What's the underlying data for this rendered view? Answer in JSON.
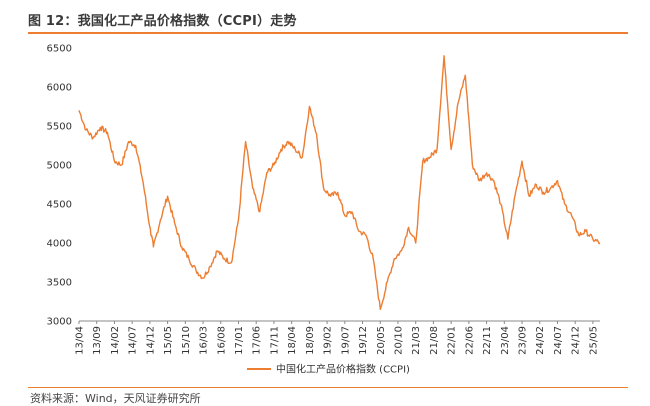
{
  "figure": {
    "title": "图 12：我国化工产品价格指数（CCPI）走势",
    "source": "资料来源：Wind，天风证券研究所"
  },
  "colors": {
    "accent": "#ED7D31",
    "axis": "#888888"
  },
  "chart_data": {
    "type": "line",
    "title": "",
    "xlabel": "",
    "ylabel": "",
    "ylim": [
      3000,
      6500
    ],
    "yticks": [
      3000,
      3500,
      4000,
      4500,
      5000,
      5500,
      6000,
      6500
    ],
    "xticks": [
      "13/04",
      "13/09",
      "14/02",
      "14/07",
      "14/12",
      "15/05",
      "15/10",
      "16/03",
      "16/08",
      "17/01",
      "17/06",
      "17/11",
      "18/04",
      "18/09",
      "19/02",
      "19/07",
      "19/12",
      "20/05",
      "20/10",
      "21/03",
      "21/08",
      "22/01",
      "22/06",
      "22/11",
      "23/04",
      "23/09",
      "24/02",
      "24/07",
      "24/12",
      "25/05"
    ],
    "legend": "bottom-center",
    "grid": false,
    "series": [
      {
        "name": "中国化工产品价格指数 (CCPI)",
        "color": "#ED7D31",
        "x": [
          "13/04",
          "13/06",
          "13/08",
          "13/10",
          "13/12",
          "14/02",
          "14/04",
          "14/06",
          "14/08",
          "14/10",
          "14/12",
          "15/01",
          "15/03",
          "15/05",
          "15/07",
          "15/09",
          "15/11",
          "16/01",
          "16/03",
          "16/05",
          "16/07",
          "16/09",
          "16/11",
          "17/01",
          "17/03",
          "17/05",
          "17/07",
          "17/09",
          "17/11",
          "18/01",
          "18/03",
          "18/05",
          "18/07",
          "18/09",
          "18/11",
          "19/01",
          "19/03",
          "19/05",
          "19/07",
          "19/09",
          "19/11",
          "20/01",
          "20/03",
          "20/05",
          "20/07",
          "20/09",
          "20/11",
          "21/01",
          "21/03",
          "21/05",
          "21/07",
          "21/09",
          "21/11",
          "22/01",
          "22/03",
          "22/05",
          "22/07",
          "22/09",
          "22/11",
          "23/01",
          "23/03",
          "23/05",
          "23/07",
          "23/09",
          "23/11",
          "24/01",
          "24/03",
          "24/05",
          "24/07",
          "24/09",
          "24/11",
          "25/01",
          "25/03",
          "25/05",
          "25/07"
        ],
        "values": [
          5700,
          5450,
          5350,
          5480,
          5420,
          5050,
          5000,
          5300,
          5250,
          4800,
          4200,
          3950,
          4300,
          4600,
          4250,
          3950,
          3800,
          3650,
          3550,
          3700,
          3900,
          3800,
          3750,
          4300,
          5300,
          4700,
          4400,
          4900,
          5000,
          5200,
          5300,
          5200,
          5100,
          5750,
          5400,
          4700,
          4600,
          4650,
          4350,
          4400,
          4150,
          4100,
          3800,
          3150,
          3500,
          3800,
          3900,
          4200,
          4000,
          5050,
          5100,
          5200,
          6400,
          5200,
          5800,
          6150,
          5000,
          4800,
          4900,
          4800,
          4500,
          4050,
          4600,
          5050,
          4600,
          4750,
          4650,
          4700,
          4800,
          4500,
          4350,
          4100,
          4150,
          4050,
          4000
        ]
      }
    ]
  }
}
